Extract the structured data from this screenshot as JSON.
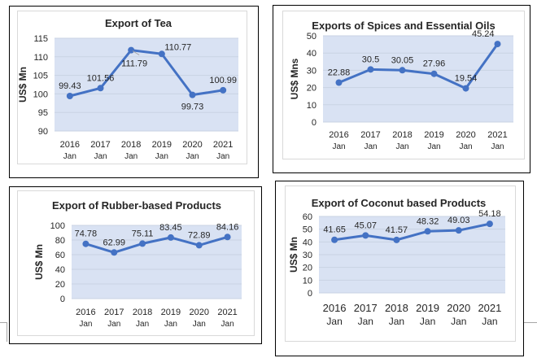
{
  "chart_data": [
    {
      "id": "tea",
      "type": "line",
      "title": "Export of Tea",
      "xlabel": "",
      "ylabel": "US$ Mn",
      "categories": [
        [
          "2016",
          "Jan"
        ],
        [
          "2017",
          "Jan"
        ],
        [
          "2018",
          "Jan"
        ],
        [
          "2019",
          "Jan"
        ],
        [
          "2020",
          "Jan"
        ],
        [
          "2021",
          "Jan"
        ]
      ],
      "series": [
        {
          "name": "Export of Tea",
          "values": [
            99.43,
            101.56,
            111.79,
            110.77,
            99.73,
            100.99
          ]
        }
      ],
      "data_labels": [
        "99.43",
        "101.56",
        "111.79",
        "110.77",
        "99.73",
        "100.99"
      ],
      "ylim": [
        90,
        115
      ],
      "yticks": [
        90,
        95,
        100,
        105,
        110,
        115
      ],
      "grid": true,
      "legend": "none",
      "colors": {
        "line": "#4472C4",
        "plot_bg": "#D9E2F3",
        "grid": "#C9D3E3"
      }
    },
    {
      "id": "spices",
      "type": "line",
      "title": "Exports of Spices and Essential Oils",
      "xlabel": "",
      "ylabel": "US$ Mns",
      "categories": [
        [
          "2016",
          "Jan"
        ],
        [
          "2017",
          "Jan"
        ],
        [
          "2018",
          "Jan"
        ],
        [
          "2019",
          "Jan"
        ],
        [
          "2020",
          "Jan"
        ],
        [
          "2021",
          "Jan"
        ]
      ],
      "series": [
        {
          "name": "Exports of Spices and Essential Oils",
          "values": [
            22.88,
            30.5,
            30.05,
            27.96,
            19.54,
            45.24
          ]
        }
      ],
      "data_labels": [
        "22.88",
        "30.5",
        "30.05",
        "27.96",
        "19.54",
        "45.24"
      ],
      "ylim": [
        0,
        50
      ],
      "yticks": [
        0,
        10,
        20,
        30,
        40,
        50
      ],
      "grid": true,
      "legend": "none",
      "colors": {
        "line": "#4472C4",
        "plot_bg": "#D9E2F3",
        "grid": "#C9D3E3"
      }
    },
    {
      "id": "rubber",
      "type": "line",
      "title": "Export of Rubber-based Products",
      "xlabel": "",
      "ylabel": "US$ Mn",
      "categories": [
        [
          "2016",
          "Jan"
        ],
        [
          "2017",
          "Jan"
        ],
        [
          "2018",
          "Jan"
        ],
        [
          "2019",
          "Jan"
        ],
        [
          "2020",
          "Jan"
        ],
        [
          "2021",
          "Jan"
        ]
      ],
      "series": [
        {
          "name": "Export of Rubber-based Products",
          "values": [
            74.78,
            62.99,
            75.11,
            83.45,
            72.89,
            84.16
          ]
        }
      ],
      "data_labels": [
        "74.78",
        "62.99",
        "75.11",
        "83.45",
        "72.89",
        "84.16"
      ],
      "ylim": [
        0,
        100
      ],
      "yticks": [
        0,
        20,
        40,
        60,
        80,
        100
      ],
      "grid": true,
      "legend": "none",
      "colors": {
        "line": "#4472C4",
        "plot_bg": "#D9E2F3",
        "grid": "#C9D3E3"
      }
    },
    {
      "id": "coconut",
      "type": "line",
      "title": "Export of Coconut based Products",
      "xlabel": "",
      "ylabel": "US$ Mn",
      "categories": [
        [
          "2016",
          "Jan"
        ],
        [
          "2017",
          "Jan"
        ],
        [
          "2018",
          "Jan"
        ],
        [
          "2019",
          "Jan"
        ],
        [
          "2020",
          "Jan"
        ],
        [
          "2021",
          "Jan"
        ]
      ],
      "series": [
        {
          "name": "Export of Coconut based Products",
          "values": [
            41.65,
            45.07,
            41.57,
            48.32,
            49.03,
            54.18
          ]
        }
      ],
      "data_labels": [
        "41.65",
        "45.07",
        "41.57",
        "48.32",
        "49.03",
        "54.18"
      ],
      "ylim": [
        0,
        60
      ],
      "yticks": [
        0,
        10,
        20,
        30,
        40,
        50,
        60
      ],
      "grid": true,
      "legend": "none",
      "colors": {
        "line": "#4472C4",
        "plot_bg": "#D9E2F3",
        "grid": "#C9D3E3"
      }
    }
  ]
}
